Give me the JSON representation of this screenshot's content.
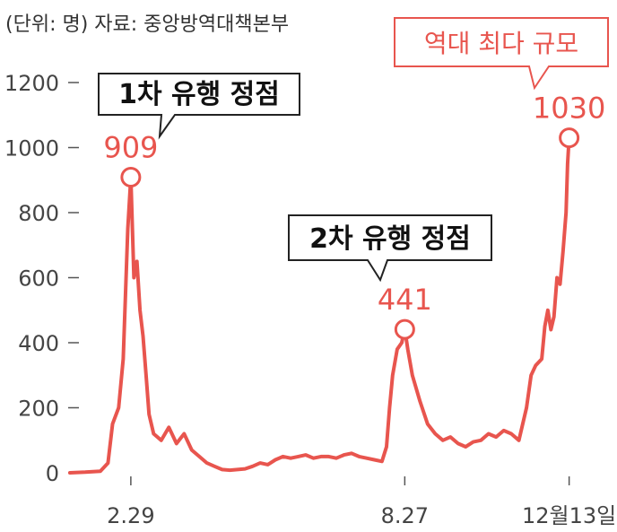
{
  "chart_data": {
    "type": "line",
    "unit_note": "(단위: 명) 자료: 중앙방역대책본부",
    "ylim": [
      0,
      1200
    ],
    "yticks": [
      "0",
      "200",
      "400",
      "600",
      "800",
      "1000",
      "1200"
    ],
    "xticks": [
      {
        "label": "2.29",
        "day": 40
      },
      {
        "label": "8.27",
        "day": 220
      },
      {
        "label": "12월13일",
        "day": 328
      }
    ],
    "series": [
      {
        "color": "#e8554e",
        "points": [
          [
            0,
            0
          ],
          [
            10,
            2
          ],
          [
            20,
            5
          ],
          [
            25,
            30
          ],
          [
            28,
            150
          ],
          [
            32,
            200
          ],
          [
            35,
            350
          ],
          [
            38,
            750
          ],
          [
            40,
            909
          ],
          [
            42,
            600
          ],
          [
            44,
            650
          ],
          [
            46,
            500
          ],
          [
            48,
            420
          ],
          [
            50,
            300
          ],
          [
            52,
            180
          ],
          [
            55,
            120
          ],
          [
            60,
            100
          ],
          [
            65,
            140
          ],
          [
            70,
            90
          ],
          [
            75,
            120
          ],
          [
            80,
            70
          ],
          [
            85,
            50
          ],
          [
            90,
            30
          ],
          [
            95,
            20
          ],
          [
            100,
            10
          ],
          [
            105,
            8
          ],
          [
            110,
            10
          ],
          [
            115,
            12
          ],
          [
            120,
            20
          ],
          [
            125,
            30
          ],
          [
            130,
            25
          ],
          [
            135,
            40
          ],
          [
            140,
            50
          ],
          [
            145,
            45
          ],
          [
            150,
            50
          ],
          [
            155,
            55
          ],
          [
            160,
            45
          ],
          [
            165,
            50
          ],
          [
            170,
            50
          ],
          [
            175,
            45
          ],
          [
            180,
            55
          ],
          [
            185,
            60
          ],
          [
            190,
            50
          ],
          [
            195,
            45
          ],
          [
            200,
            40
          ],
          [
            205,
            35
          ],
          [
            208,
            80
          ],
          [
            210,
            200
          ],
          [
            212,
            300
          ],
          [
            215,
            380
          ],
          [
            218,
            400
          ],
          [
            220,
            441
          ],
          [
            222,
            380
          ],
          [
            225,
            300
          ],
          [
            230,
            220
          ],
          [
            235,
            150
          ],
          [
            240,
            120
          ],
          [
            245,
            100
          ],
          [
            250,
            110
          ],
          [
            255,
            90
          ],
          [
            260,
            80
          ],
          [
            265,
            95
          ],
          [
            270,
            100
          ],
          [
            275,
            120
          ],
          [
            280,
            110
          ],
          [
            285,
            130
          ],
          [
            290,
            120
          ],
          [
            295,
            100
          ],
          [
            300,
            200
          ],
          [
            303,
            300
          ],
          [
            306,
            330
          ],
          [
            310,
            350
          ],
          [
            312,
            450
          ],
          [
            314,
            500
          ],
          [
            316,
            440
          ],
          [
            318,
            480
          ],
          [
            320,
            600
          ],
          [
            322,
            580
          ],
          [
            324,
            680
          ],
          [
            326,
            800
          ],
          [
            327,
            950
          ],
          [
            328,
            1030
          ]
        ]
      }
    ],
    "peaks": [
      {
        "label": "1차 유행 정점",
        "value": "909",
        "day": 40,
        "y": 909
      },
      {
        "label": "2차 유행 정점",
        "value": "441",
        "day": 220,
        "y": 441
      },
      {
        "label": "역대 최다 규모",
        "value": "1030",
        "day": 328,
        "y": 1030
      }
    ]
  }
}
